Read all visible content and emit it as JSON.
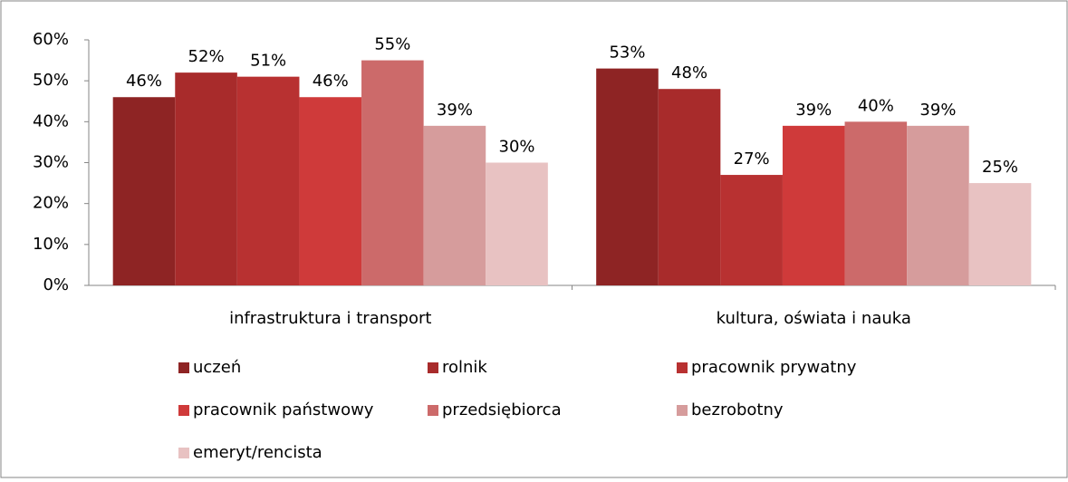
{
  "chart_data": {
    "type": "bar",
    "categories": [
      "infrastruktura i transport",
      "kultura, oświata i nauka"
    ],
    "series": [
      {
        "name": "uczeń",
        "color": "#8e2424",
        "values": [
          46,
          53
        ],
        "value_labels": [
          "46%",
          "53%"
        ]
      },
      {
        "name": "rolnik",
        "color": "#a82b2b",
        "values": [
          52,
          48
        ],
        "value_labels": [
          "52%",
          "48%"
        ]
      },
      {
        "name": "pracownik prywatny",
        "color": "#b83131",
        "values": [
          51,
          27
        ],
        "value_labels": [
          "51%",
          "27%"
        ]
      },
      {
        "name": "pracownik państwowy",
        "color": "#cf3a3a",
        "values": [
          46,
          39
        ],
        "value_labels": [
          "46%",
          "39%"
        ]
      },
      {
        "name": "przedsiębiorca",
        "color": "#cc6a6a",
        "values": [
          55,
          40
        ],
        "value_labels": [
          "55%",
          "40%"
        ]
      },
      {
        "name": "bezrobotny",
        "color": "#d69c9c",
        "values": [
          39,
          39
        ],
        "value_labels": [
          "39%",
          "39%"
        ]
      },
      {
        "name": "emeryt/rencista",
        "color": "#e8c2c2",
        "values": [
          30,
          25
        ],
        "value_labels": [
          "30%",
          "25%"
        ]
      }
    ],
    "ylim": [
      0,
      60
    ],
    "yticks": [
      {
        "value": 0,
        "label": "0%"
      },
      {
        "value": 10,
        "label": "10%"
      },
      {
        "value": 20,
        "label": "20%"
      },
      {
        "value": 30,
        "label": "30%"
      },
      {
        "value": 40,
        "label": "40%"
      },
      {
        "value": 50,
        "label": "50%"
      },
      {
        "value": 60,
        "label": "60%"
      }
    ],
    "legend": "bottom"
  }
}
